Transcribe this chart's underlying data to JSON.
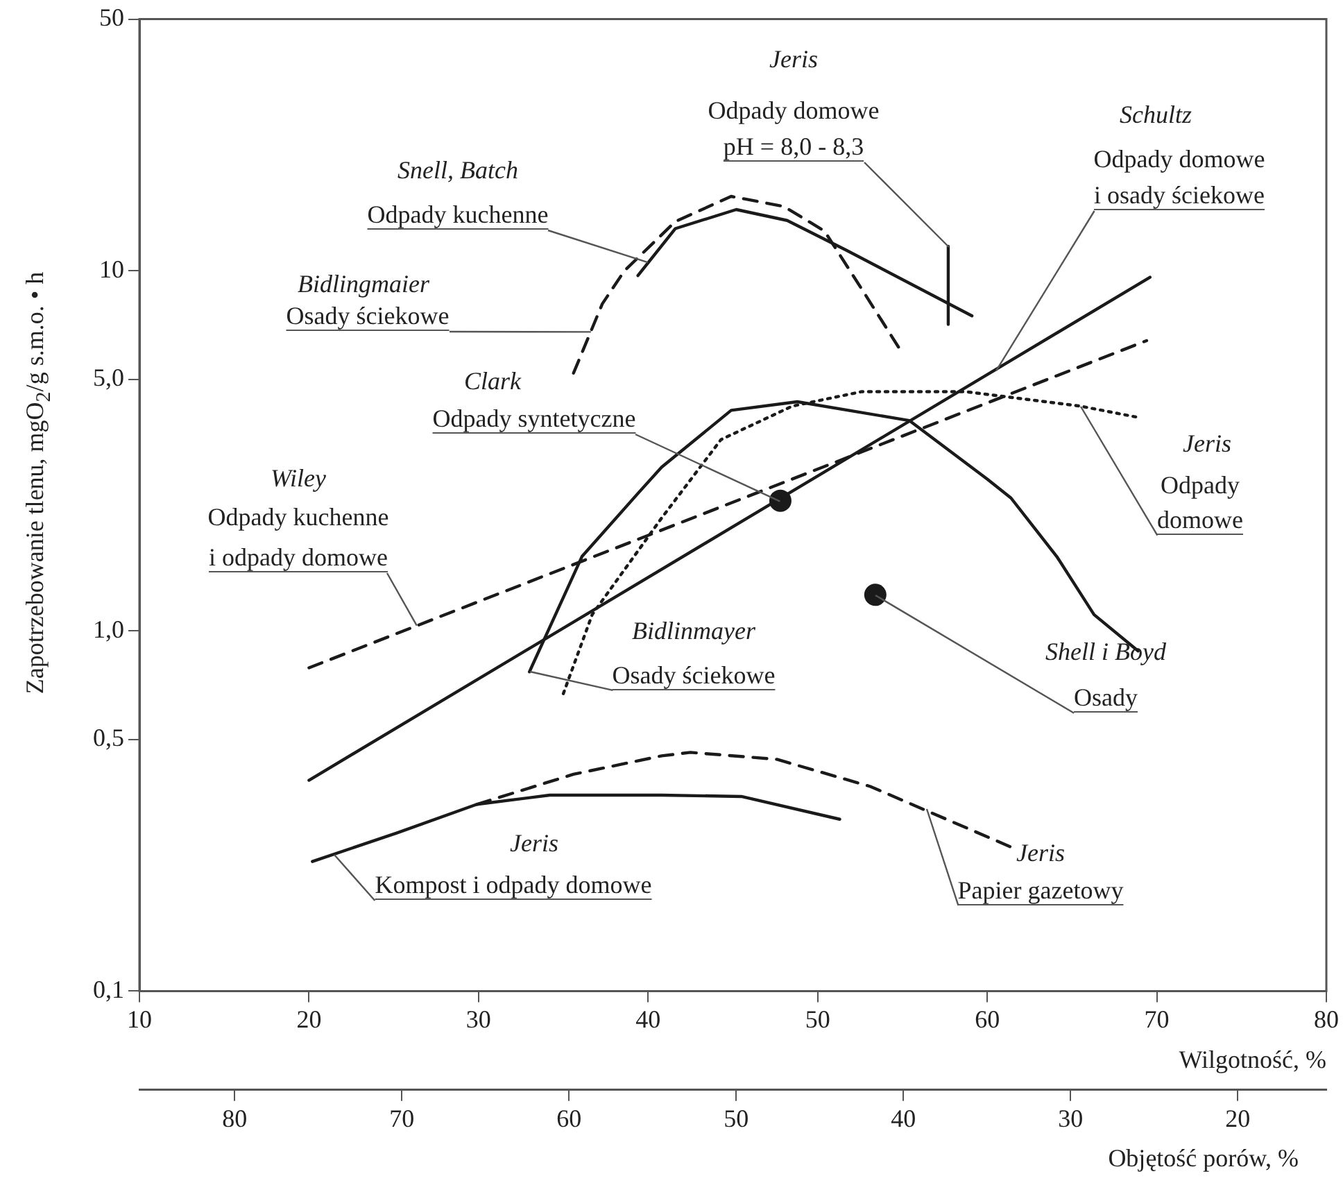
{
  "chart_data": {
    "type": "line",
    "xlabel": "Wilgotność, %",
    "ylabel": "Zapotrzebowanie tlenu, mgO$_{2}$/g s.m.o. • h",
    "x2label": "Objętość porów, %",
    "xlim": [
      10,
      80
    ],
    "xticks": [
      10,
      20,
      30,
      40,
      50,
      60,
      70,
      80
    ],
    "x2lim": [
      85.7,
      14.7
    ],
    "x2ticks": [
      80,
      70,
      60,
      50,
      40,
      30,
      20
    ],
    "ylim": [
      0.1,
      50
    ],
    "yticks": [
      {
        "value": 0.1,
        "label": "0,1"
      },
      {
        "value": 0.5,
        "label": "0,5"
      },
      {
        "value": 1,
        "label": "1,0"
      },
      {
        "value": 5,
        "label": "5,0"
      },
      {
        "value": 10,
        "label": "10"
      },
      {
        "value": 50,
        "label": "50"
      }
    ],
    "log": "y",
    "grid": false,
    "legend": false,
    "series": [
      {
        "type": "line",
        "line_style": "solid",
        "marker": "none",
        "color": "#1a1a1a",
        "x": [
          39.4,
          41.6,
          45.2,
          48.2,
          51.7,
          59.1
        ],
        "values": [
          9.7,
          13.1,
          14.8,
          13.8,
          11.4,
          7.5
        ]
      },
      {
        "type": "line",
        "line_style": "dashed",
        "marker": "none",
        "color": "#1a1a1a",
        "x": [
          35.6,
          37.3,
          38.6,
          41.6,
          44.9,
          48.0,
          50.4,
          52.6,
          55.0
        ],
        "values": [
          5.2,
          8.1,
          10.0,
          13.7,
          16.1,
          15.1,
          12.9,
          8.9,
          5.9
        ]
      },
      {
        "type": "line",
        "line_style": "solid",
        "marker": "none",
        "color": "#1a1a1a",
        "x": [
          57.7,
          57.7
        ],
        "values": [
          11.7,
          7.1
        ]
      },
      {
        "type": "line",
        "line_style": "solid",
        "marker": "none",
        "color": "#1a1a1a",
        "x": [
          20,
          69.6
        ],
        "values": [
          0.385,
          9.6
        ]
      },
      {
        "type": "scatter",
        "marker": "circle",
        "color": "#1a1a1a",
        "x": [
          47.8
        ],
        "values": [
          2.3
        ]
      },
      {
        "type": "line",
        "line_style": "dashed",
        "marker": "none",
        "color": "#1a1a1a",
        "x": [
          20,
          69.4
        ],
        "values": [
          0.79,
          6.4
        ]
      },
      {
        "type": "line",
        "line_style": "solid",
        "marker": "none",
        "color": "#1a1a1a",
        "x": [
          33.0,
          36.1,
          39.4,
          40.8,
          44.9,
          48.8,
          55.4,
          60.0,
          61.4,
          64.1,
          66.3,
          68.9
        ],
        "values": [
          0.77,
          1.61,
          2.41,
          2.85,
          4.1,
          4.33,
          3.84,
          2.64,
          2.34,
          1.61,
          1.11,
          0.88
        ]
      },
      {
        "type": "line",
        "line_style": "dotted",
        "marker": "none",
        "color": "#1a1a1a",
        "x": [
          35.0,
          36.7,
          40.8,
          44.3,
          48.5,
          52.6,
          58.7,
          65.5,
          69.0
        ],
        "values": [
          0.67,
          1.11,
          2.06,
          3.4,
          4.21,
          4.62,
          4.62,
          4.21,
          3.91
        ]
      },
      {
        "type": "scatter",
        "marker": "circle",
        "color": "#1a1a1a",
        "x": [
          53.4
        ],
        "values": [
          1.26
        ]
      },
      {
        "type": "line",
        "line_style": "solid",
        "marker": "none",
        "color": "#1a1a1a",
        "x": [
          20.2,
          25.2,
          29.9,
          34.2,
          40.8,
          45.5,
          51.3
        ],
        "values": [
          0.229,
          0.275,
          0.33,
          0.35,
          0.35,
          0.347,
          0.3
        ]
      },
      {
        "type": "line",
        "line_style": "dashed",
        "marker": "none",
        "color": "#1a1a1a",
        "x": [
          29.9,
          35.6,
          40.8,
          42.5,
          47.6,
          53.1,
          61.5
        ],
        "values": [
          0.33,
          0.4,
          0.45,
          0.46,
          0.44,
          0.37,
          0.25
        ]
      }
    ],
    "annotations": [
      {
        "text": "Snell, Batch\nOdpady kuchenne",
        "x": 40.0,
        "y": 10.6
      },
      {
        "text": "Bidlingmaier\nOsady ściekowe",
        "x": 36.6,
        "y": 6.8
      },
      {
        "text": "Jeris\nOdpady domowe\npH = 8,0 - 8,3",
        "x": 57.7,
        "y": 11.7
      },
      {
        "text": "Schultz\nOdpady domowe\ni osady ściekowe",
        "x": 60.5,
        "y": 5.3
      },
      {
        "text": "Clark\nOdpady syntetyczne",
        "x": 47.8,
        "y": 2.3
      },
      {
        "text": "Wiley\nOdpady kuchenne\ni odpady domowe",
        "x": 26.4,
        "y": 1.04
      },
      {
        "text": "Bidlinmayer\nOsady ściekowe",
        "x": 33.0,
        "y": 0.77
      },
      {
        "text": "Jeris\nOdpady\ndomowe",
        "x": 65.5,
        "y": 4.21
      },
      {
        "text": "Shell i Boyd\nOsady",
        "x": 53.4,
        "y": 1.26
      },
      {
        "text": "Jeris\nKompost i odpady domowe",
        "x": 21.5,
        "y": 0.24
      },
      {
        "text": "Jeris\nPapier gazetowy",
        "x": 56.4,
        "y": 0.32
      }
    ]
  }
}
